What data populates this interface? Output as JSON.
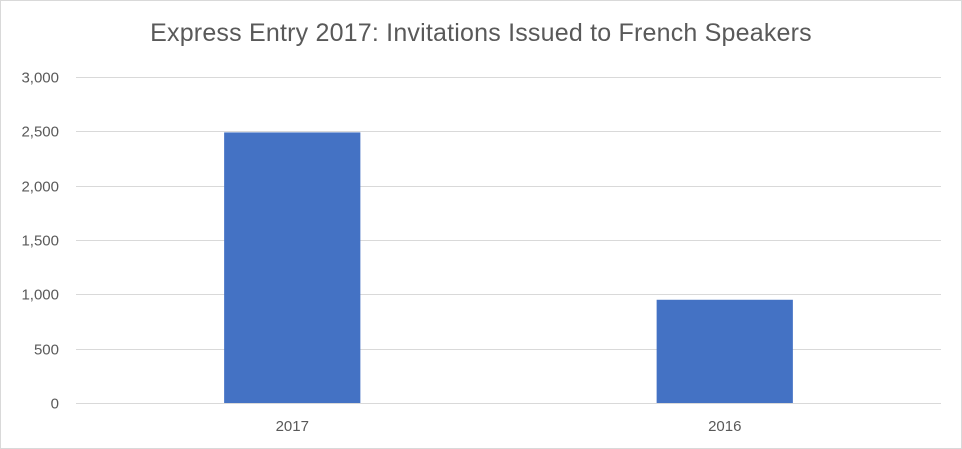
{
  "chart_data": {
    "type": "bar",
    "title": "Express Entry 2017: Invitations Issued to French Speakers",
    "xlabel": "",
    "ylabel": "",
    "categories": [
      "2017",
      "2016"
    ],
    "values": [
      2490,
      950
    ],
    "ylim": [
      0,
      3000
    ],
    "yticks": [
      0,
      500,
      1000,
      1500,
      2000,
      2500,
      3000
    ],
    "ytick_labels": [
      "0",
      "500",
      "1,000",
      "1,500",
      "2,000",
      "2,500",
      "3,000"
    ],
    "grid": true,
    "legend": "none",
    "bar_color": "#4472c4",
    "grid_color": "#d9d9d9"
  }
}
